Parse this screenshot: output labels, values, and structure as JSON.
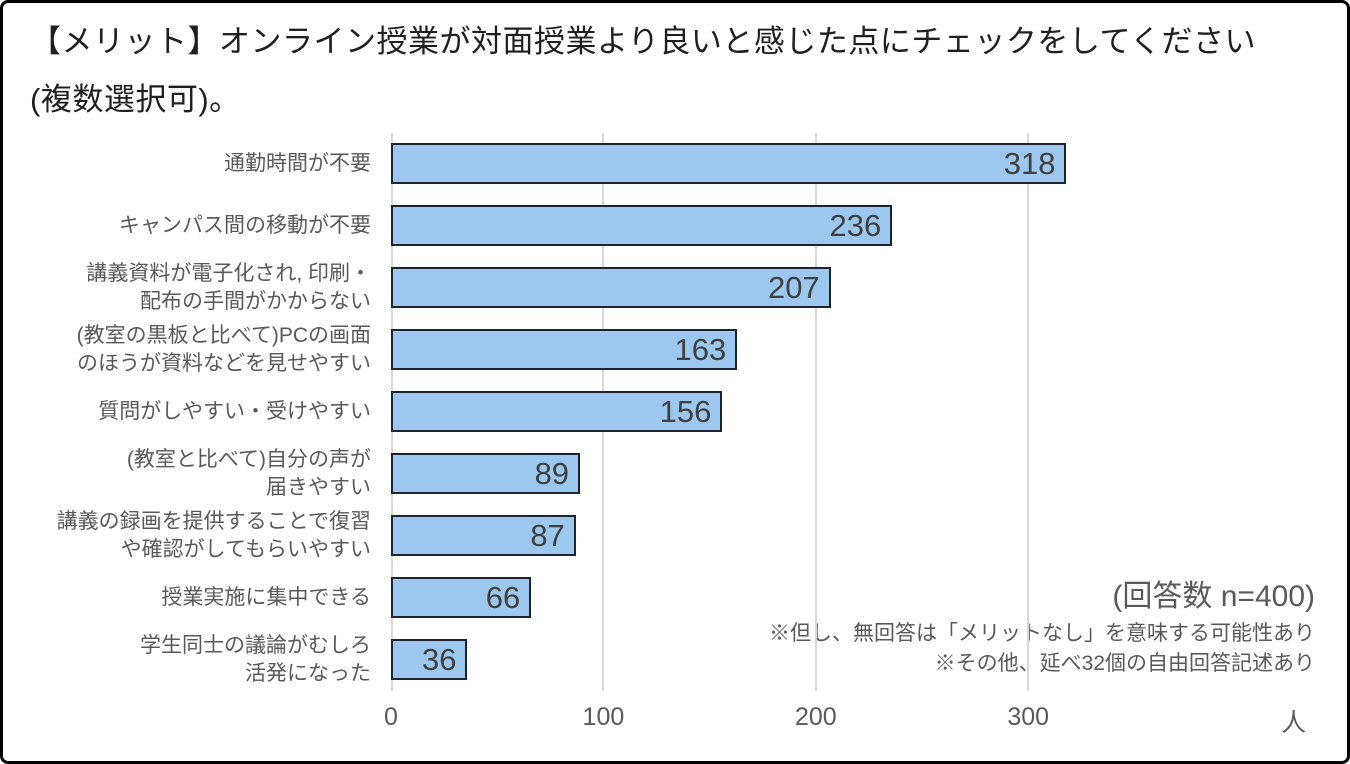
{
  "title": {
    "line1": "【メリット】オンライン授業が対面授業より良いと感じた点にチェックをしてください",
    "line2": "(複数選択可)。"
  },
  "chart_data": {
    "type": "bar",
    "orientation": "horizontal",
    "categories": [
      "通勤時間が不要",
      "キャンパス間の移動が不要",
      "講義資料が電子化され, 印刷・\n配布の手間がかからない",
      "(教室の黒板と比べて)PCの画面\nのほうが資料などを見せやすい",
      "質問がしやすい・受けやすい",
      "(教室と比べて)自分の声が\n届きやすい",
      "講義の録画を提供することで復習\nや確認がしてもらいやすい",
      "授業実施に集中できる",
      "学生同士の議論がむしろ\n活発になった"
    ],
    "values": [
      318,
      236,
      207,
      163,
      156,
      89,
      87,
      66,
      36
    ],
    "x_ticks": [
      "0",
      "100",
      "200",
      "300"
    ],
    "x_tick_values": [
      0,
      100,
      200,
      300
    ],
    "x_max": 435,
    "axis_unit": "人",
    "axis_unit_position": 425,
    "grid": true,
    "legend": "none",
    "annotations": {
      "n_label": "(回答数 n=400)",
      "note1": "※但し、無回答は「メリットなし」を意味する可能性あり",
      "note2": "※その他、延べ32個の自由回答記述あり"
    },
    "colors": {
      "bar_fill": "#9CC7EF",
      "bar_border": "#1C2433",
      "grid_line": "#D9D9D9",
      "axis_text": "#595959",
      "category_text": "#595959",
      "value_text": "#404040",
      "title_text": "#1F1F1F",
      "note_text": "#595959"
    }
  }
}
